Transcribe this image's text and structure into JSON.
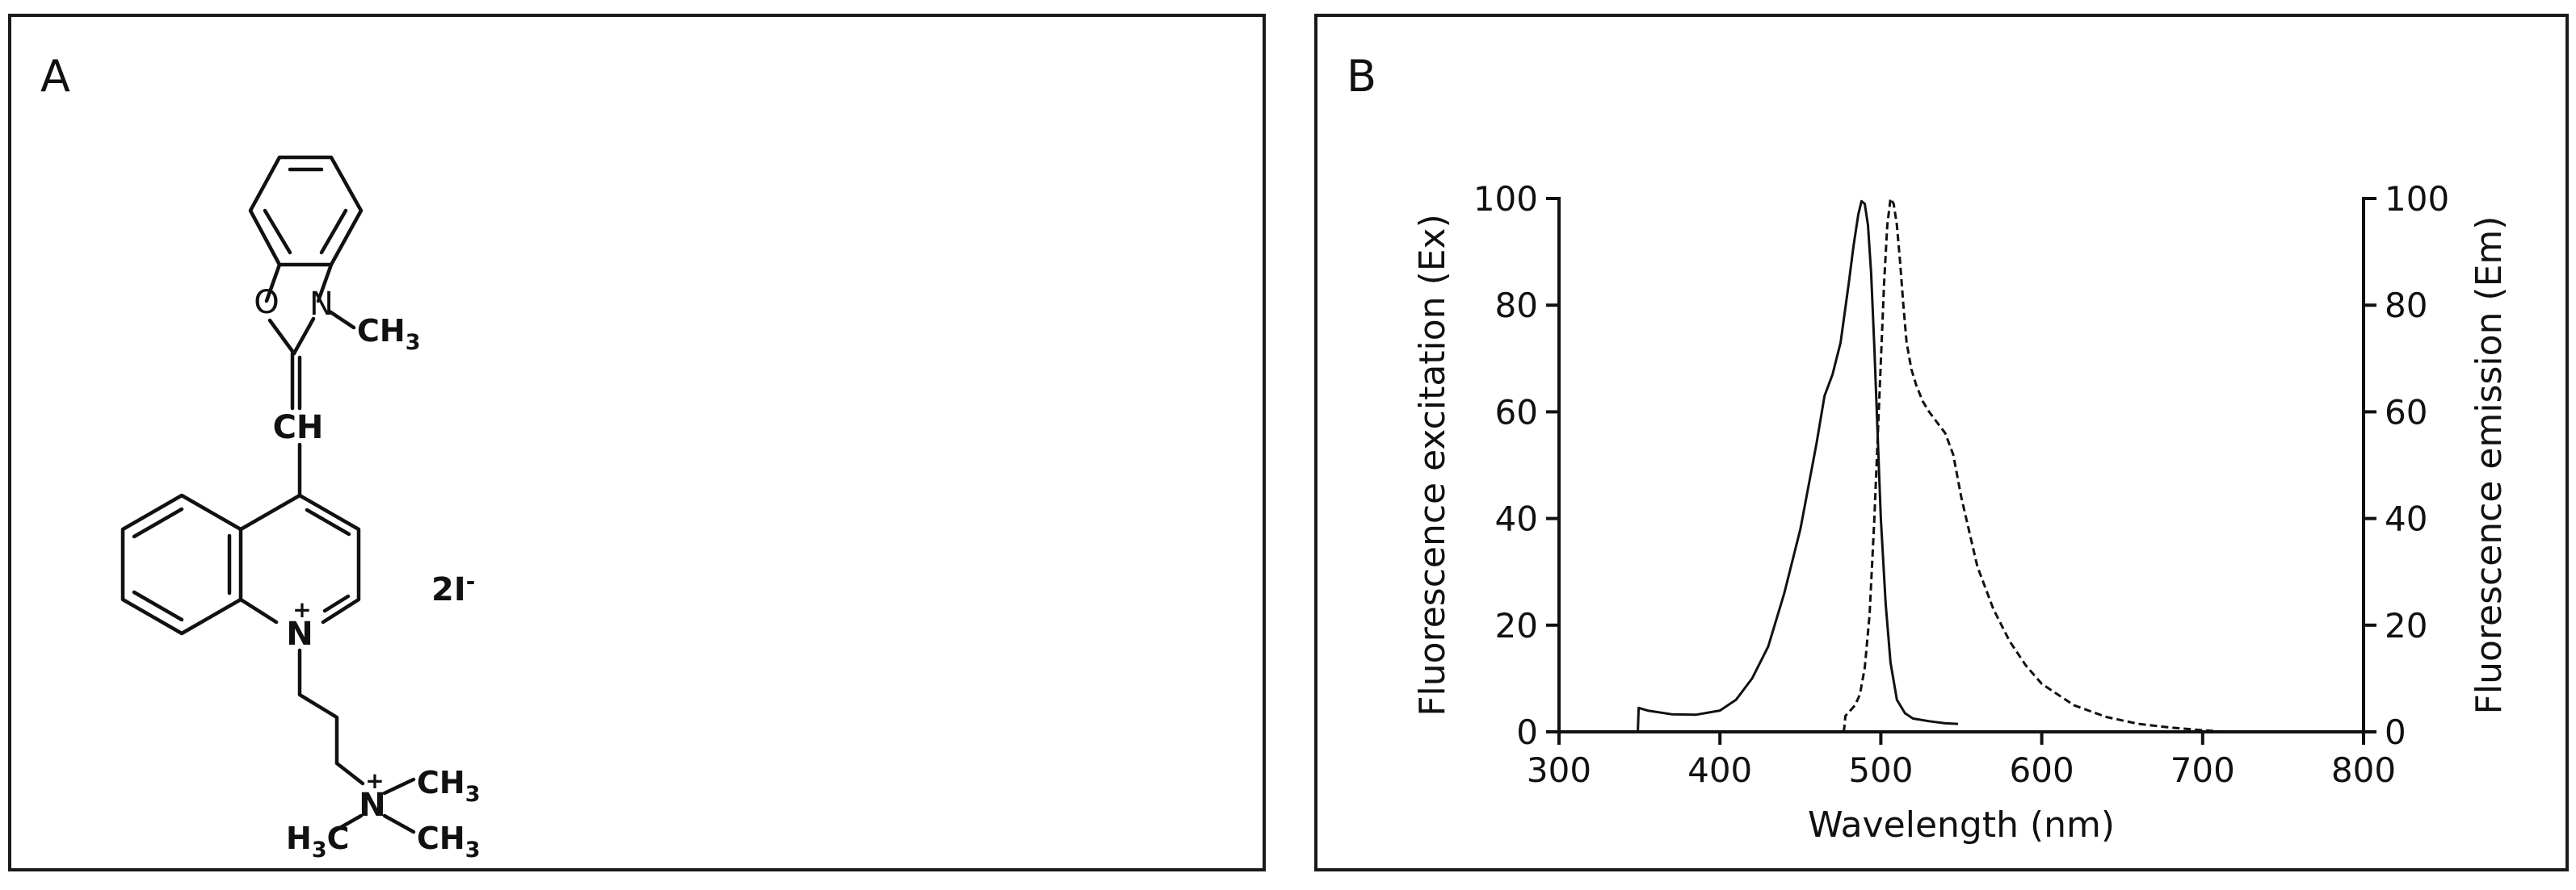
{
  "panel_a": {
    "label": "A",
    "structure": {
      "atom_O": "O",
      "atom_N_ring": "N",
      "methyl": {
        "main": "CH",
        "sub": "3"
      },
      "methine": "CH",
      "quinolinium_N": "N",
      "plus": "+",
      "counterion": {
        "main": "2I",
        "sup": "-"
      },
      "ammonium_N": "N",
      "ammonium_plus": "+",
      "methyl_right_top": {
        "main": "CH",
        "sub": "3"
      },
      "methyl_right_bottom": {
        "main": "CH",
        "sub": "3"
      },
      "methyl_left": {
        "pre": "H",
        "sub": "3",
        "post": "C"
      }
    }
  },
  "panel_b": {
    "label": "B",
    "colors": {
      "axis": "#111111",
      "excitation": "#111111",
      "emission": "#111111"
    },
    "chart_data": {
      "type": "line",
      "xlabel": "Wavelength (nm)",
      "ylabel_left": "Fluorescence excitation (Ex)",
      "ylabel_right": "Fluorescence emission (Em)",
      "xlim": [
        300,
        800
      ],
      "ylim": [
        0,
        100
      ],
      "x_ticks": [
        300,
        400,
        500,
        600,
        700,
        800
      ],
      "y_ticks": [
        0,
        20,
        40,
        60,
        80,
        100
      ],
      "grid": false,
      "series": [
        {
          "style": "solid",
          "axis": "left",
          "x": [
            349,
            349.5,
            355,
            370,
            385,
            400,
            410,
            420,
            430,
            440,
            450,
            460,
            465,
            470,
            475,
            480,
            483,
            486,
            488,
            490,
            492,
            494,
            496,
            498,
            500,
            503,
            506,
            510,
            515,
            520,
            530,
            540,
            548
          ],
          "y": [
            0,
            4.5,
            4,
            3.3,
            3.2,
            4,
            6,
            10,
            16,
            26,
            38,
            54,
            63,
            67,
            73,
            84,
            91,
            97,
            99.5,
            99,
            95,
            86,
            72,
            56,
            40,
            24,
            13,
            6,
            3.5,
            2.5,
            2,
            1.6,
            1.5
          ]
        },
        {
          "style": "dashed",
          "axis": "right",
          "x": [
            477,
            478,
            481,
            484,
            487,
            490,
            493,
            496,
            499,
            502,
            504,
            506,
            508,
            510,
            512,
            514,
            516,
            519,
            522,
            526,
            530,
            535,
            540,
            545,
            550,
            560,
            570,
            580,
            590,
            600,
            620,
            640,
            660,
            680,
            700,
            715
          ],
          "y": [
            0,
            3,
            4,
            5,
            7,
            12,
            22,
            40,
            62,
            84,
            95,
            100,
            99,
            95,
            88,
            80,
            73,
            68,
            65,
            62,
            60,
            58,
            56,
            52,
            44,
            31,
            23,
            17,
            12.5,
            9,
            5,
            2.8,
            1.5,
            0.8,
            0.3,
            0
          ]
        }
      ]
    }
  }
}
